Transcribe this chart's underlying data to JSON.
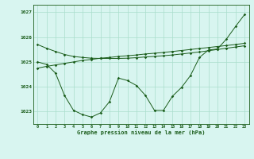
{
  "x": [
    0,
    1,
    2,
    3,
    4,
    5,
    6,
    7,
    8,
    9,
    10,
    11,
    12,
    13,
    14,
    15,
    16,
    17,
    18,
    19,
    20,
    21,
    22,
    23
  ],
  "line1": [
    1025.7,
    1025.55,
    1025.42,
    1025.3,
    1025.22,
    1025.18,
    1025.15,
    1025.14,
    1025.14,
    1025.14,
    1025.15,
    1025.17,
    1025.2,
    1025.22,
    1025.25,
    1025.28,
    1025.32,
    1025.36,
    1025.4,
    1025.45,
    1025.5,
    1025.55,
    1025.6,
    1025.65
  ],
  "line2": [
    1025.0,
    1024.9,
    1024.55,
    1023.65,
    1023.05,
    1022.88,
    1022.78,
    1022.95,
    1023.4,
    1024.35,
    1024.25,
    1024.05,
    1023.65,
    1023.05,
    1023.05,
    1023.62,
    1023.97,
    1024.45,
    1025.18,
    1025.48,
    1025.52,
    1025.92,
    1026.42,
    1026.9
  ],
  "line3": [
    1024.75,
    1024.82,
    1024.88,
    1024.94,
    1025.0,
    1025.06,
    1025.1,
    1025.15,
    1025.18,
    1025.22,
    1025.25,
    1025.28,
    1025.32,
    1025.35,
    1025.38,
    1025.42,
    1025.46,
    1025.5,
    1025.54,
    1025.58,
    1025.62,
    1025.66,
    1025.7,
    1025.75
  ],
  "line_color": "#1a5c1a",
  "bg_color": "#d8f5f0",
  "grid_color": "#aaddcc",
  "xlabel": "Graphe pression niveau de la mer (hPa)",
  "yticks": [
    1023,
    1024,
    1025,
    1026,
    1027
  ],
  "xticks": [
    0,
    1,
    2,
    3,
    4,
    5,
    6,
    7,
    8,
    9,
    10,
    11,
    12,
    13,
    14,
    15,
    16,
    17,
    18,
    19,
    20,
    21,
    22,
    23
  ],
  "ylim": [
    1022.5,
    1027.3
  ],
  "xlim": [
    -0.5,
    23.5
  ]
}
